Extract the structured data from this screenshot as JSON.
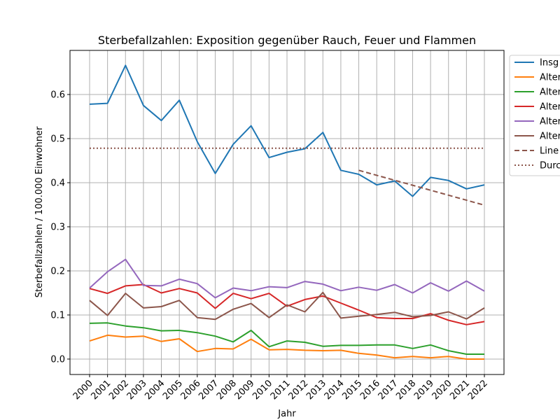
{
  "chart_data": {
    "type": "line",
    "title": "Sterbefallzahlen: Exposition gegenüber Rauch, Feuer und Flammen",
    "xlabel": "Jahr",
    "ylabel": "Sterbefallzahlen / 100.000 Einwohner",
    "ylim": [
      -0.035,
      0.7
    ],
    "yticks": [
      "0.0",
      "0.1",
      "0.2",
      "0.3",
      "0.4",
      "0.5",
      "0.6"
    ],
    "grid": true,
    "legend_position": "outside-top-right",
    "categories": [
      "2000",
      "2001",
      "2002",
      "2003",
      "2004",
      "2005",
      "2006",
      "2007",
      "2008",
      "2009",
      "2010",
      "2011",
      "2012",
      "2013",
      "2014",
      "2015",
      "2016",
      "2017",
      "2018",
      "2019",
      "2020",
      "2021",
      "2022"
    ],
    "series": [
      {
        "name": "Insg",
        "color": "#1f77b4",
        "style": "solid",
        "values": [
          0.578,
          0.58,
          0.666,
          0.575,
          0.541,
          0.587,
          0.493,
          0.421,
          0.487,
          0.529,
          0.457,
          0.469,
          0.477,
          0.514,
          0.428,
          0.419,
          0.395,
          0.404,
          0.369,
          0.412,
          0.405,
          0.386,
          0.395
        ]
      },
      {
        "name": "Alter",
        "color": "#ff7f0e",
        "style": "solid",
        "values": [
          0.041,
          0.054,
          0.05,
          0.052,
          0.04,
          0.046,
          0.017,
          0.024,
          0.023,
          0.045,
          0.021,
          0.022,
          0.02,
          0.019,
          0.02,
          0.013,
          0.009,
          0.003,
          0.006,
          0.003,
          0.006,
          0.0,
          0.0
        ]
      },
      {
        "name": "Alter",
        "color": "#2ca02c",
        "style": "solid",
        "values": [
          0.081,
          0.082,
          0.075,
          0.071,
          0.064,
          0.065,
          0.06,
          0.052,
          0.039,
          0.065,
          0.028,
          0.041,
          0.038,
          0.029,
          0.031,
          0.031,
          0.032,
          0.032,
          0.024,
          0.032,
          0.019,
          0.011,
          0.011
        ]
      },
      {
        "name": "Alter",
        "color": "#d62728",
        "style": "solid",
        "values": [
          0.16,
          0.149,
          0.166,
          0.169,
          0.15,
          0.16,
          0.15,
          0.115,
          0.149,
          0.137,
          0.149,
          0.12,
          0.135,
          0.143,
          0.127,
          0.111,
          0.094,
          0.092,
          0.092,
          0.103,
          0.088,
          0.078,
          0.085
        ]
      },
      {
        "name": "Alter",
        "color": "#9467bd",
        "style": "solid",
        "values": [
          0.161,
          0.198,
          0.226,
          0.167,
          0.166,
          0.181,
          0.171,
          0.139,
          0.161,
          0.155,
          0.164,
          0.162,
          0.176,
          0.17,
          0.155,
          0.163,
          0.156,
          0.169,
          0.15,
          0.173,
          0.154,
          0.177,
          0.154
        ]
      },
      {
        "name": "Alter",
        "color": "#8c564b",
        "style": "solid",
        "values": [
          0.133,
          0.099,
          0.149,
          0.116,
          0.119,
          0.133,
          0.094,
          0.09,
          0.113,
          0.126,
          0.094,
          0.123,
          0.107,
          0.151,
          0.093,
          0.097,
          0.101,
          0.106,
          0.096,
          0.099,
          0.107,
          0.091,
          0.116
        ]
      },
      {
        "name": "Line",
        "color": "#8c564b",
        "style": "dashed",
        "x": [
          "2015",
          "2022"
        ],
        "values": [
          0.428,
          0.349
        ]
      },
      {
        "name": "Durc",
        "color": "#8c564b",
        "style": "dotted",
        "x": [
          "2000",
          "2022"
        ],
        "values": [
          0.478,
          0.478
        ]
      }
    ]
  }
}
